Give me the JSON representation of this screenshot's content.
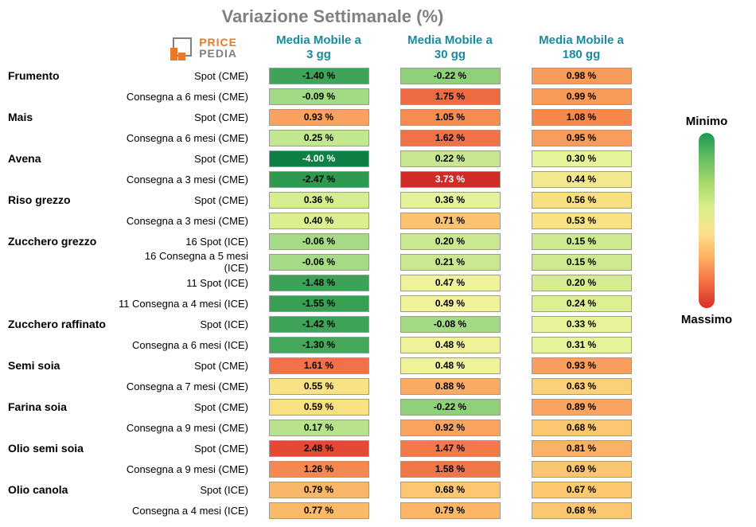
{
  "title": "Variazione Settimanale (%)",
  "logo": {
    "brand1": "PRICE",
    "brand2": "PEDIA",
    "icon_color": "#e8792b",
    "icon_border": "#808080"
  },
  "columns": [
    {
      "label_l1": "Media Mobile a",
      "label_l2": "3 gg"
    },
    {
      "label_l1": "Media Mobile a",
      "label_l2": "30 gg"
    },
    {
      "label_l1": "Media Mobile a",
      "label_l2": "180 gg"
    }
  ],
  "legend": {
    "min": "Minimo",
    "max": "Massimo"
  },
  "colors": {
    "title": "#808080",
    "header_text": "#1b8a9e",
    "cell_border": "#9a9a9a",
    "gradient": [
      "#1a9850",
      "#66bd63",
      "#a6d96a",
      "#d9ef8b",
      "#fee08b",
      "#fdae61",
      "#f46d43",
      "#d73027"
    ]
  },
  "rows": [
    {
      "commodity": "Frumento",
      "contract": "Spot (CME)",
      "cells": [
        {
          "v": "-1.40 %",
          "bg": "#3fa457"
        },
        {
          "v": "-0.22 %",
          "bg": "#8fd17a"
        },
        {
          "v": "0.98 %",
          "bg": "#f79b5b"
        }
      ]
    },
    {
      "commodity": "",
      "contract": "Consegna a 6 mesi (CME)",
      "cells": [
        {
          "v": "-0.09 %",
          "bg": "#a3da86"
        },
        {
          "v": "1.75 %",
          "bg": "#ee6b42"
        },
        {
          "v": "0.99 %",
          "bg": "#f89a58"
        }
      ]
    },
    {
      "commodity": "Mais",
      "contract": "Spot (CME)",
      "cells": [
        {
          "v": "0.93 %",
          "bg": "#f9a260"
        },
        {
          "v": "1.05 %",
          "bg": "#f58d51"
        },
        {
          "v": "1.08 %",
          "bg": "#f5884a"
        }
      ]
    },
    {
      "commodity": "",
      "contract": "Consegna a 6 mesi (CME)",
      "cells": [
        {
          "v": "0.25 %",
          "bg": "#c3e78f"
        },
        {
          "v": "1.62 %",
          "bg": "#f07246"
        },
        {
          "v": "0.95 %",
          "bg": "#f89d5c"
        }
      ]
    },
    {
      "commodity": "Avena",
      "contract": "Spot (CME)",
      "cells": [
        {
          "v": "-4.00 %",
          "bg": "#0f8045",
          "light": true
        },
        {
          "v": "0.22 %",
          "bg": "#c6e790"
        },
        {
          "v": "0.30 %",
          "bg": "#e8f49a"
        }
      ]
    },
    {
      "commodity": "",
      "contract": "Consegna a 3 mesi (CME)",
      "cells": [
        {
          "v": "-2.47 %",
          "bg": "#2d9a4f"
        },
        {
          "v": "3.73 %",
          "bg": "#d12b27",
          "light": true
        },
        {
          "v": "0.44 %",
          "bg": "#f2e88f"
        }
      ]
    },
    {
      "commodity": "Riso grezzo",
      "contract": "Spot (CME)",
      "cells": [
        {
          "v": "0.36 %",
          "bg": "#d5ee8f"
        },
        {
          "v": "0.36 %",
          "bg": "#e5f29a"
        },
        {
          "v": "0.56 %",
          "bg": "#f8df7f"
        }
      ]
    },
    {
      "commodity": "",
      "contract": "Consegna a 3 mesi (CME)",
      "cells": [
        {
          "v": "0.40 %",
          "bg": "#dbef8f"
        },
        {
          "v": "0.71 %",
          "bg": "#fcc26e"
        },
        {
          "v": "0.53 %",
          "bg": "#f9e284"
        }
      ]
    },
    {
      "commodity": "Zucchero grezzo",
      "contract": "16 Spot (ICE)",
      "cells": [
        {
          "v": "-0.06 %",
          "bg": "#a6da87"
        },
        {
          "v": "0.20 %",
          "bg": "#c9e890"
        },
        {
          "v": "0.15 %",
          "bg": "#cdea90"
        }
      ]
    },
    {
      "commodity": "",
      "contract": "16 Consegna a 5 mesi (ICE)",
      "cells": [
        {
          "v": "-0.06 %",
          "bg": "#a6da87"
        },
        {
          "v": "0.21 %",
          "bg": "#cae890"
        },
        {
          "v": "0.15 %",
          "bg": "#cdea90"
        }
      ]
    },
    {
      "commodity": "",
      "contract": "11 Spot (ICE)",
      "cells": [
        {
          "v": "-1.48 %",
          "bg": "#3ca255"
        },
        {
          "v": "0.47 %",
          "bg": "#eff29a"
        },
        {
          "v": "0.20 %",
          "bg": "#d5ec90"
        }
      ]
    },
    {
      "commodity": "",
      "contract": "11 Consegna a 4 mesi (ICE)",
      "cells": [
        {
          "v": "-1.55 %",
          "bg": "#38a053"
        },
        {
          "v": "0.49 %",
          "bg": "#f1f29a"
        },
        {
          "v": "0.24 %",
          "bg": "#dcef93"
        }
      ]
    },
    {
      "commodity": "Zucchero raffinato",
      "contract": "Spot (ICE)",
      "cells": [
        {
          "v": "-1.42 %",
          "bg": "#3ea356"
        },
        {
          "v": "-0.08 %",
          "bg": "#a3da86"
        },
        {
          "v": "0.33 %",
          "bg": "#e9f49a"
        }
      ]
    },
    {
      "commodity": "",
      "contract": "Consegna a 6 mesi (ICE)",
      "cells": [
        {
          "v": "-1.30 %",
          "bg": "#44a759"
        },
        {
          "v": "0.48 %",
          "bg": "#f0f29a"
        },
        {
          "v": "0.31 %",
          "bg": "#e8f49a"
        }
      ]
    },
    {
      "commodity": "Semi soia",
      "contract": "Spot (CME)",
      "cells": [
        {
          "v": "1.61 %",
          "bg": "#f07246"
        },
        {
          "v": "0.48 %",
          "bg": "#f0f29a"
        },
        {
          "v": "0.93 %",
          "bg": "#f89f5d"
        }
      ]
    },
    {
      "commodity": "",
      "contract": "Consegna a 7 mesi (CME)",
      "cells": [
        {
          "v": "0.55 %",
          "bg": "#f8e284"
        },
        {
          "v": "0.88 %",
          "bg": "#fbaa63"
        },
        {
          "v": "0.63 %",
          "bg": "#fbd078"
        }
      ]
    },
    {
      "commodity": "Farina soia",
      "contract": "Spot (CME)",
      "cells": [
        {
          "v": "0.59 %",
          "bg": "#f9e080"
        },
        {
          "v": "-0.22 %",
          "bg": "#8fd17a"
        },
        {
          "v": "0.89 %",
          "bg": "#f9a561"
        }
      ]
    },
    {
      "commodity": "",
      "contract": "Consegna a 9 mesi (CME)",
      "cells": [
        {
          "v": "0.17 %",
          "bg": "#b8e28b"
        },
        {
          "v": "0.92 %",
          "bg": "#f9a460"
        },
        {
          "v": "0.68 %",
          "bg": "#fcc770"
        }
      ]
    },
    {
      "commodity": "Olio semi soia",
      "contract": "Spot (CME)",
      "cells": [
        {
          "v": "2.48 %",
          "bg": "#e44a33"
        },
        {
          "v": "1.47 %",
          "bg": "#f2794a"
        },
        {
          "v": "0.81 %",
          "bg": "#fbb267"
        }
      ]
    },
    {
      "commodity": "",
      "contract": "Consegna a 9 mesi (CME)",
      "cells": [
        {
          "v": "1.26 %",
          "bg": "#f58750"
        },
        {
          "v": "1.58 %",
          "bg": "#f07547"
        },
        {
          "v": "0.69 %",
          "bg": "#fcc56f"
        }
      ]
    },
    {
      "commodity": "Olio canola",
      "contract": "Spot (ICE)",
      "cells": [
        {
          "v": "0.79 %",
          "bg": "#fbb769"
        },
        {
          "v": "0.68 %",
          "bg": "#fcc770"
        },
        {
          "v": "0.67 %",
          "bg": "#fcc971"
        }
      ]
    },
    {
      "commodity": "",
      "contract": "Consegna a 4 mesi (ICE)",
      "cells": [
        {
          "v": "0.77 %",
          "bg": "#fbba6a"
        },
        {
          "v": "0.79 %",
          "bg": "#fbb668"
        },
        {
          "v": "0.68 %",
          "bg": "#fcc770"
        }
      ]
    }
  ]
}
